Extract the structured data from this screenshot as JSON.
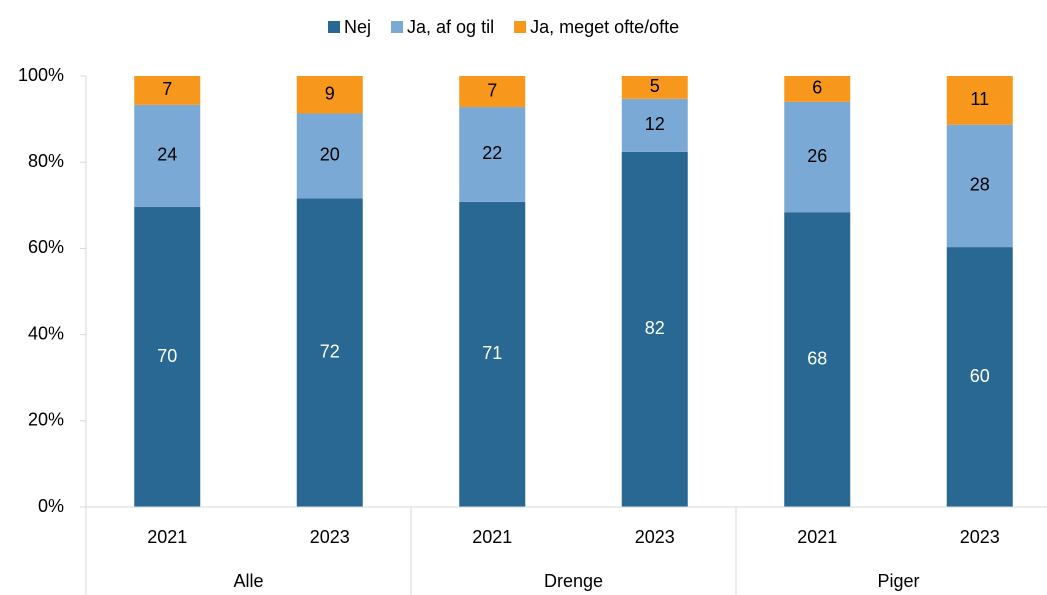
{
  "chart_data": {
    "type": "bar",
    "stacked": true,
    "categories": [
      "2021",
      "2023",
      "2021",
      "2023",
      "2021",
      "2023"
    ],
    "groups": [
      "Alle",
      "Drenge",
      "Piger"
    ],
    "series": [
      {
        "name": "Nej",
        "color": "#286892",
        "label_color": "#ffffff",
        "values": [
          69.6,
          71.6,
          70.8,
          82.4,
          68.4,
          60.3
        ],
        "value_labels": [
          "70",
          "72",
          "71",
          "82",
          "68",
          "60"
        ]
      },
      {
        "name": "Ja, af og til",
        "color": "#7aa9d6",
        "label_color": "#000000",
        "values": [
          23.7,
          19.7,
          22.0,
          12.3,
          25.6,
          28.4
        ],
        "value_labels": [
          "24",
          "20",
          "22",
          "12",
          "26",
          "28"
        ]
      },
      {
        "name": "Ja, meget ofte/ofte",
        "color": "#f7981d",
        "label_color": "#000000",
        "values": [
          6.7,
          8.7,
          7.2,
          5.3,
          6.0,
          11.3
        ],
        "value_labels": [
          "7",
          "9",
          "7",
          "5",
          "6",
          "11"
        ]
      }
    ],
    "ylim": [
      0,
      100
    ],
    "yticks": [
      {
        "value": 0,
        "label": "0%"
      },
      {
        "value": 20,
        "label": "20%"
      },
      {
        "value": 40,
        "label": "40%"
      },
      {
        "value": 60,
        "label": "60%"
      },
      {
        "value": 80,
        "label": "80%"
      },
      {
        "value": 100,
        "label": "100%"
      }
    ],
    "grid": false,
    "legend": "top"
  }
}
